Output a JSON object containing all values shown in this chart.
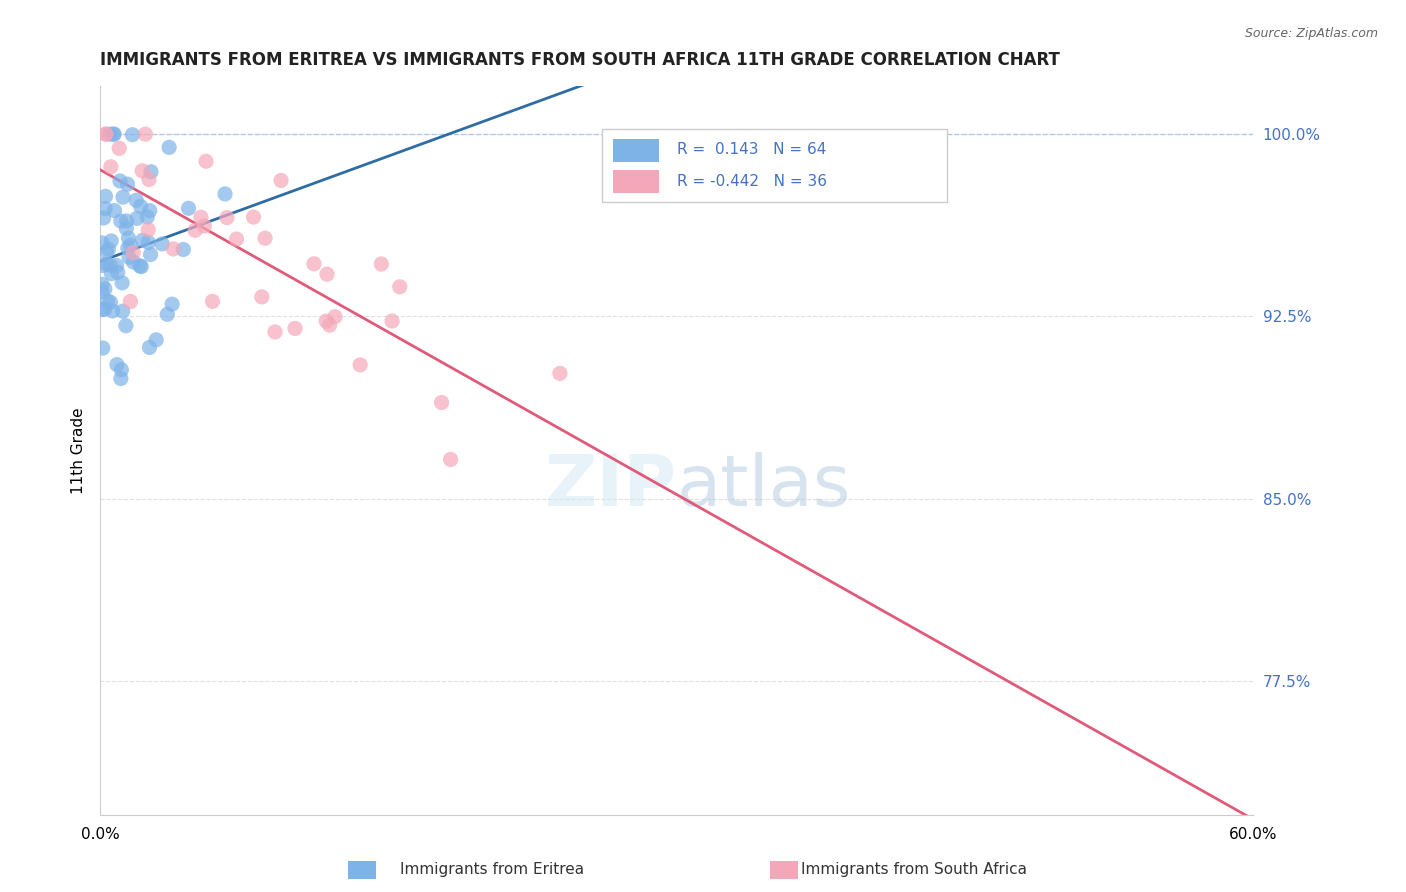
{
  "title": "IMMIGRANTS FROM ERITREA VS IMMIGRANTS FROM SOUTH AFRICA 11TH GRADE CORRELATION CHART",
  "source": "Source: ZipAtlas.com",
  "ylabel": "11th Grade",
  "ylabel_ticks": [
    "100.0%",
    "92.5%",
    "85.0%",
    "77.5%"
  ],
  "ylabel_values": [
    1.0,
    0.925,
    0.85,
    0.775
  ],
  "xmin": 0.0,
  "xmax": 0.6,
  "ymin": 0.72,
  "ymax": 1.02,
  "r_eritrea": 0.143,
  "n_eritrea": 64,
  "r_south_africa": -0.442,
  "n_south_africa": 36,
  "color_eritrea": "#7EB3E8",
  "color_south_africa": "#F4A7B9",
  "color_trendline_eritrea": "#2E6DA4",
  "color_trendline_south_africa": "#E05A7A",
  "color_dashed_line": "#A0C4F0"
}
